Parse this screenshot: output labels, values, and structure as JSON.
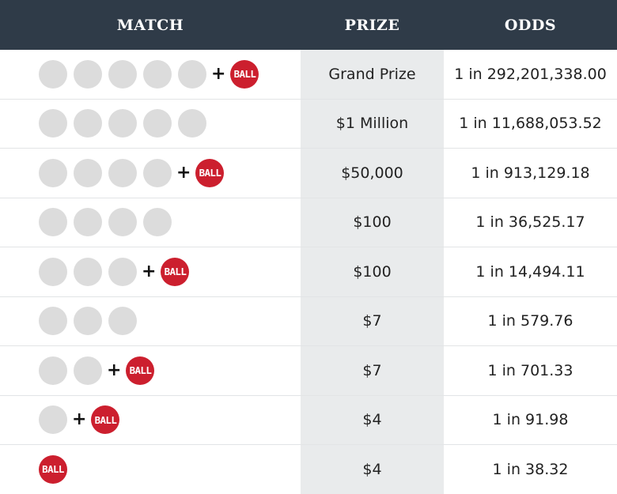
{
  "header": {
    "match": "MATCH",
    "prize": "PRIZE",
    "odds": "ODDS"
  },
  "ball_label": "BALL",
  "plus_symbol": "+",
  "colors": {
    "header_bg": "#2f3b48",
    "white_ball": "#dcdcdc",
    "bonus_ball": "#cc1f2e",
    "prize_column_bg": "#e9ebec"
  },
  "rows": [
    {
      "white_balls": 5,
      "bonus": true,
      "prize": "Grand Prize",
      "odds": "1 in 292,201,338.00"
    },
    {
      "white_balls": 5,
      "bonus": false,
      "prize": "$1 Million",
      "odds": "1 in 11,688,053.52"
    },
    {
      "white_balls": 4,
      "bonus": true,
      "prize": "$50,000",
      "odds": "1 in 913,129.18"
    },
    {
      "white_balls": 4,
      "bonus": false,
      "prize": "$100",
      "odds": "1 in 36,525.17"
    },
    {
      "white_balls": 3,
      "bonus": true,
      "prize": "$100",
      "odds": "1 in 14,494.11"
    },
    {
      "white_balls": 3,
      "bonus": false,
      "prize": "$7",
      "odds": "1 in 579.76"
    },
    {
      "white_balls": 2,
      "bonus": true,
      "prize": "$7",
      "odds": "1 in 701.33"
    },
    {
      "white_balls": 1,
      "bonus": true,
      "prize": "$4",
      "odds": "1 in 91.98"
    },
    {
      "white_balls": 0,
      "bonus": true,
      "prize": "$4",
      "odds": "1 in 38.32"
    }
  ]
}
